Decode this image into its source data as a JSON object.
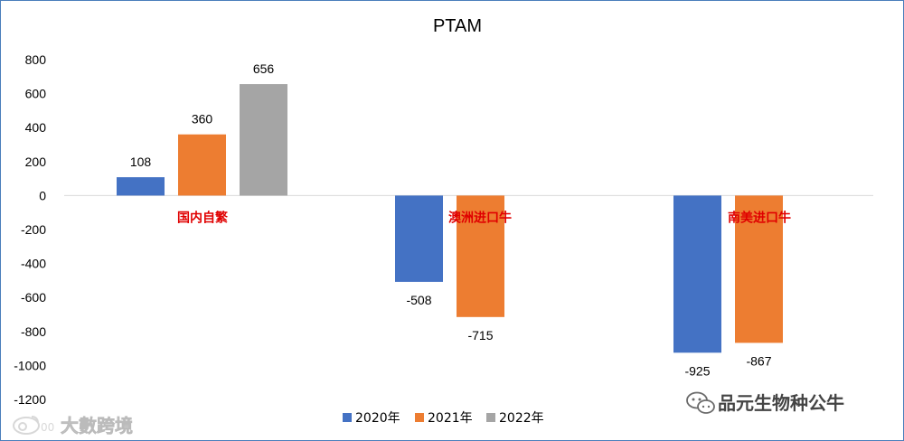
{
  "chart_data": {
    "type": "bar",
    "title": "PTAM",
    "categories": [
      "国内自繁",
      "澳洲进口牛",
      "南美进口牛"
    ],
    "series": [
      {
        "name": "2020年",
        "values": [
          108,
          -508,
          -925
        ],
        "color": "#4472c4"
      },
      {
        "name": "2021年",
        "values": [
          360,
          -715,
          -867
        ],
        "color": "#ed7d31"
      },
      {
        "name": "2022年",
        "values": [
          656,
          null,
          null
        ],
        "color": "#a5a5a5"
      }
    ],
    "ylim": [
      -1200,
      800
    ],
    "yticks": [
      800,
      600,
      400,
      200,
      0,
      -200,
      -400,
      -600,
      -800,
      -1000,
      -1200
    ],
    "grid": false,
    "legend_position": "bottom",
    "category_label_color": "#e00000"
  },
  "watermark_left": "大數跨境",
  "watermark_right": "品元生物种公牛"
}
